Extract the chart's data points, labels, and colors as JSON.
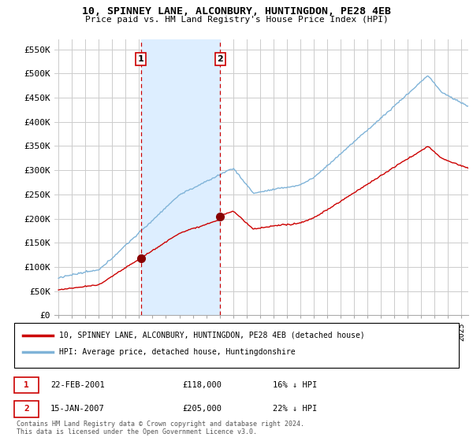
{
  "title": "10, SPINNEY LANE, ALCONBURY, HUNTINGDON, PE28 4EB",
  "subtitle": "Price paid vs. HM Land Registry's House Price Index (HPI)",
  "background_color": "#ffffff",
  "plot_bg_color": "#ffffff",
  "grid_color": "#cccccc",
  "hpi_color": "#7fb3d8",
  "price_color": "#cc0000",
  "marker_color": "#880000",
  "annotation_color": "#cc0000",
  "shade_color": "#ddeeff",
  "ylim": [
    0,
    570000
  ],
  "yticks": [
    0,
    50000,
    100000,
    150000,
    200000,
    250000,
    300000,
    350000,
    400000,
    450000,
    500000,
    550000
  ],
  "ytick_labels": [
    "£0",
    "£50K",
    "£100K",
    "£150K",
    "£200K",
    "£250K",
    "£300K",
    "£350K",
    "£400K",
    "£450K",
    "£500K",
    "£550K"
  ],
  "xlim_start": 1994.7,
  "xlim_end": 2025.5,
  "sale1_x": 2001.13,
  "sale1_y": 118000,
  "sale2_x": 2007.04,
  "sale2_y": 205000,
  "legend_property": "10, SPINNEY LANE, ALCONBURY, HUNTINGDON, PE28 4EB (detached house)",
  "legend_hpi": "HPI: Average price, detached house, Huntingdonshire",
  "annotation1_date": "22-FEB-2001",
  "annotation1_price": "£118,000",
  "annotation1_hpi": "16% ↓ HPI",
  "annotation2_date": "15-JAN-2007",
  "annotation2_price": "£205,000",
  "annotation2_hpi": "22% ↓ HPI",
  "footer": "Contains HM Land Registry data © Crown copyright and database right 2024.\nThis data is licensed under the Open Government Licence v3.0."
}
